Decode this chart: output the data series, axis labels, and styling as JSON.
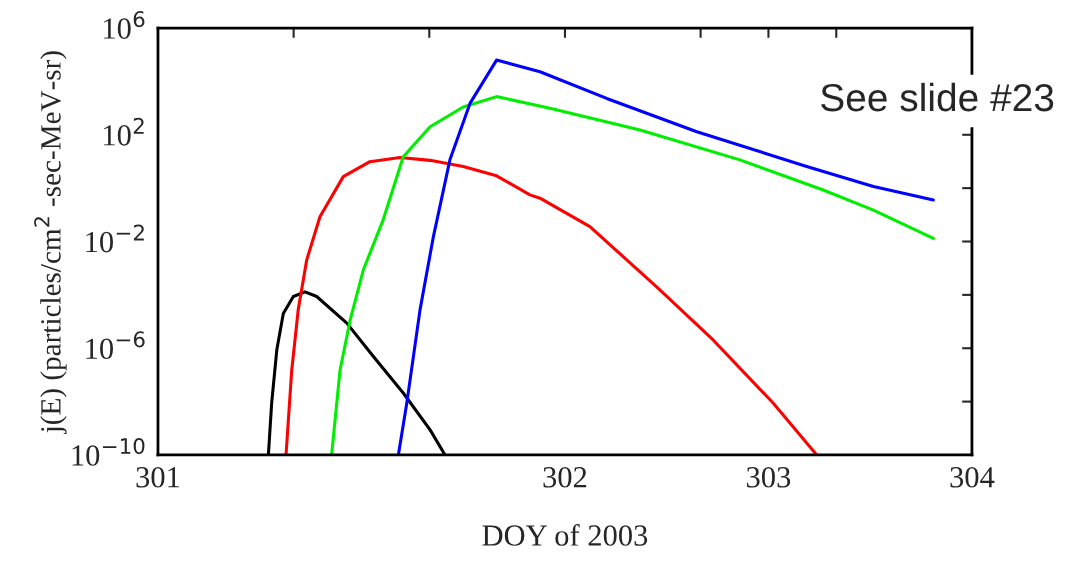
{
  "chart_data": {
    "type": "line",
    "xlabel": "DOY of 2003",
    "ylabel": "j(E) (particles/cm$^{2}$ -sec-MeV-sr)",
    "annotations": [
      "See slide #23"
    ],
    "log": "y",
    "xlim": [
      301,
      304
    ],
    "xticks": [
      301,
      {
        "value": 301.5,
        "label": null
      },
      {
        "value": 302,
        "label": null
      },
      {
        "value": 302.5,
        "label": "302"
      },
      {
        "value": 303,
        "label": null
      },
      {
        "value": 303.25,
        "label": "303"
      },
      {
        "value": 303.5,
        "label": null
      },
      304
    ],
    "ylim": [
      1e-10,
      1000000.0
    ],
    "yticks": [
      {
        "value": 1000000.0,
        "label": "10$^{6}$"
      },
      {
        "value": 10000.0,
        "label": null
      },
      {
        "value": 100.0,
        "label": "10$^{2}$"
      },
      {
        "value": 1,
        "label": null
      },
      {
        "value": 0.01,
        "label": "10$^{−2}$"
      },
      {
        "value": 0.0001,
        "label": null
      },
      {
        "value": 1e-06,
        "label": "10$^{−6}$"
      },
      {
        "value": 1e-08,
        "label": null
      },
      {
        "value": 1e-10,
        "label": "10$^{−10}$"
      }
    ],
    "grid": false,
    "legend": false,
    "marker": "none",
    "line_style": "solid",
    "series": [
      {
        "color": "#000000",
        "x": [
          301.407,
          301.419,
          301.438,
          301.462,
          301.499,
          301.542,
          301.585,
          301.696,
          301.794,
          301.904,
          302.003,
          302.058
        ],
        "values": [
          1e-10,
          8.7e-09,
          8.7e-07,
          2e-05,
          8.7e-05,
          0.00013,
          8.7e-05,
          8.7e-06,
          4.9e-07,
          2.1e-08,
          8.7e-10,
          1e-10
        ]
      },
      {
        "color": "#ff0000",
        "x": [
          301.472,
          301.493,
          301.517,
          301.548,
          301.597,
          301.683,
          301.781,
          301.892,
          302.003,
          302.125,
          302.248,
          302.371,
          302.408,
          302.592,
          302.838,
          303.047,
          303.268,
          303.428
        ],
        "values": [
          1e-10,
          1.5e-07,
          2.8e-05,
          0.002,
          0.085,
          2.7,
          9.8,
          14,
          11,
          6.5,
          2.9,
          0.56,
          0.42,
          0.036,
          0.0002,
          2e-06,
          8.7e-09,
          1e-10
        ]
      },
      {
        "color": "#00ee00",
        "x": [
          301.64,
          301.671,
          301.708,
          301.757,
          301.83,
          301.904,
          302.003,
          302.125,
          302.248,
          302.445,
          302.777,
          303.145,
          303.452,
          303.637,
          303.858
        ],
        "values": [
          1e-10,
          1.5e-07,
          1.1e-05,
          0.00087,
          0.065,
          15,
          200,
          1100,
          2700,
          980,
          150,
          11.5,
          0.85,
          0.15,
          0.013
        ]
      },
      {
        "color": "#0000ff",
        "x": [
          301.886,
          301.917,
          301.966,
          302.015,
          302.076,
          302.15,
          302.248,
          302.408,
          302.654,
          302.986,
          303.391,
          303.637,
          303.858
        ],
        "values": [
          1e-10,
          8.7e-09,
          2.8e-05,
          0.015,
          11.5,
          1500,
          63000,
          23000,
          2300,
          130,
          6.5,
          1.15,
          0.36
        ]
      }
    ]
  }
}
